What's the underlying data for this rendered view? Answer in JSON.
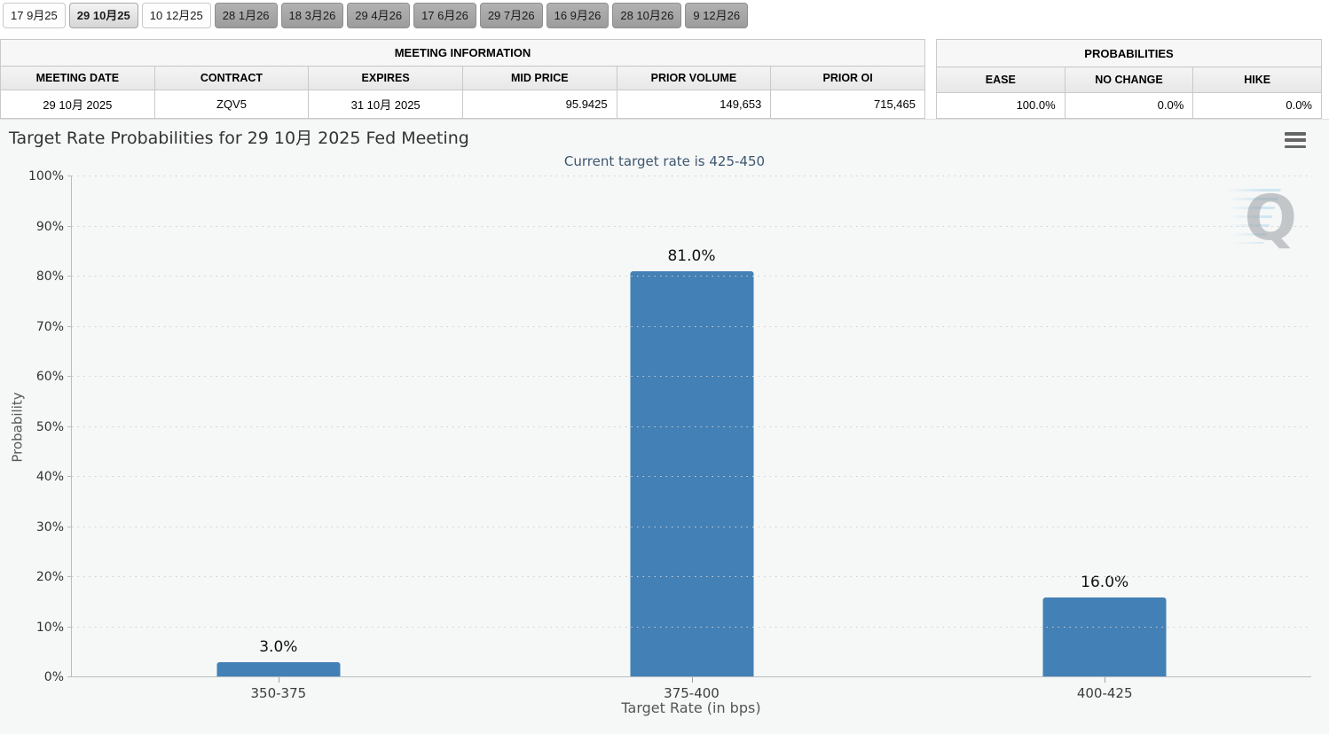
{
  "tab_bar": {
    "tabs": [
      {
        "label": "17 9月25",
        "state": "light"
      },
      {
        "label": "29 10月25",
        "state": "selected"
      },
      {
        "label": "10 12月25",
        "state": "light"
      },
      {
        "label": "28 1月26",
        "state": "dark"
      },
      {
        "label": "18 3月26",
        "state": "dark"
      },
      {
        "label": "29 4月26",
        "state": "dark"
      },
      {
        "label": "17 6月26",
        "state": "dark"
      },
      {
        "label": "29 7月26",
        "state": "dark"
      },
      {
        "label": "16 9月26",
        "state": "dark"
      },
      {
        "label": "28 10月26",
        "state": "dark"
      },
      {
        "label": "9 12月26",
        "state": "dark"
      }
    ]
  },
  "meeting_info_table": {
    "title": "MEETING INFORMATION",
    "columns": [
      {
        "label": "MEETING DATE",
        "align": "center",
        "width": "19.6%"
      },
      {
        "label": "CONTRACT",
        "align": "center",
        "width": "15.2%"
      },
      {
        "label": "EXPIRES",
        "align": "center",
        "width": "18.4%"
      },
      {
        "label": "MID PRICE",
        "align": "right",
        "width": "14.0%"
      },
      {
        "label": "PRIOR VOLUME",
        "align": "right",
        "width": "20.3%"
      },
      {
        "label": "PRIOR OI",
        "align": "right",
        "width": "12.5%"
      }
    ],
    "row": [
      "29 10月 2025",
      "ZQV5",
      "31 10月 2025",
      "95.9425",
      "149,653",
      "715,465"
    ]
  },
  "probabilities_table": {
    "title": "PROBABILITIES",
    "columns": [
      {
        "label": "EASE",
        "align": "right",
        "width": "31.7%"
      },
      {
        "label": "NO CHANGE",
        "align": "right",
        "width": "45.3%"
      },
      {
        "label": "HIKE",
        "align": "right",
        "width": "23.0%"
      }
    ],
    "row": [
      "100.0%",
      "0.0%",
      "0.0%"
    ]
  },
  "chart_data": {
    "type": "bar",
    "title": "Target Rate Probabilities for 29 10月 2025 Fed Meeting",
    "subtitle": "Current target rate is 425-450",
    "categories": [
      "350-375",
      "375-400",
      "400-425"
    ],
    "values": [
      3.0,
      81.0,
      16.0
    ],
    "data_labels": [
      "3.0%",
      "81.0%",
      "16.0%"
    ],
    "xlabel": "Target Rate (in bps)",
    "ylabel": "Probability",
    "ylim": [
      0,
      100
    ],
    "y_tick_step": 10,
    "y_tick_labels": [
      "0%",
      "10%",
      "20%",
      "30%",
      "40%",
      "50%",
      "60%",
      "70%",
      "80%",
      "90%",
      "100%"
    ],
    "bar_color": "#4380b5",
    "grid": "dotted horizontal",
    "legend": "none",
    "watermark_letter": "Q"
  }
}
